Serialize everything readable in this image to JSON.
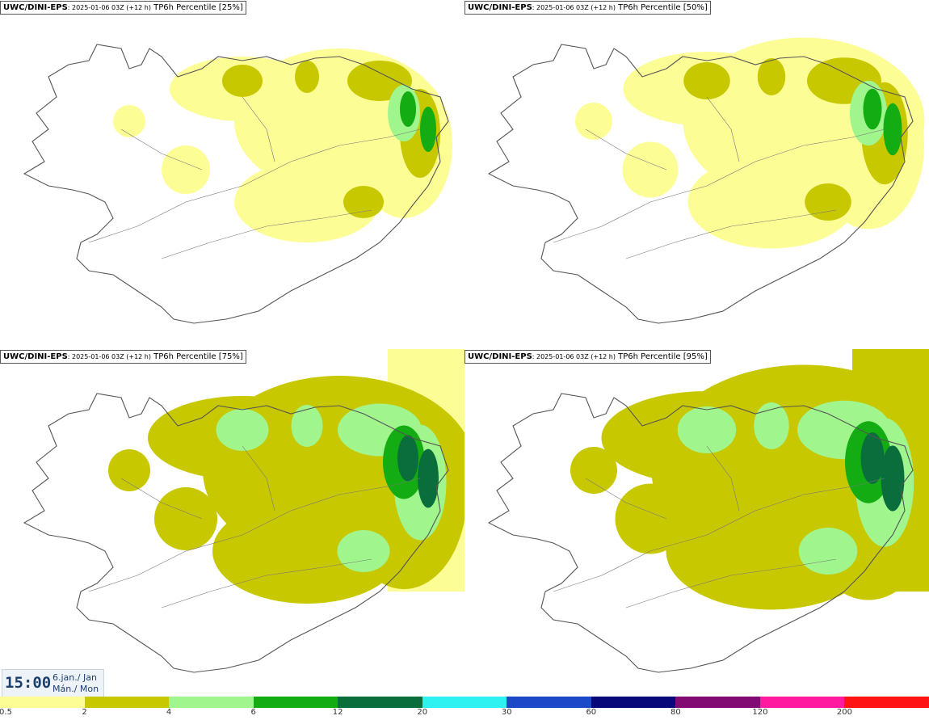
{
  "panels": [
    {
      "model": "UWC/DINI-EPS",
      "run": ": 2025-01-06 03Z (+12 h)",
      "field": " TP6h Percentile [25%]",
      "percentile": 25
    },
    {
      "model": "UWC/DINI-EPS",
      "run": ": 2025-01-06 03Z (+12 h)",
      "field": " TP6h Percentile [50%]",
      "percentile": 50
    },
    {
      "model": "UWC/DINI-EPS",
      "run": ": 2025-01-06 03Z (+12 h)",
      "field": " TP6h Percentile [75%]",
      "percentile": 75
    },
    {
      "model": "UWC/DINI-EPS",
      "run": ": 2025-01-06 03Z (+12 h)",
      "field": " TP6h Percentile [95%]",
      "percentile": 95
    }
  ],
  "valid_time": {
    "clock": "15:00",
    "date_line1": "6.jan./ Jan",
    "date_line2": "Mán./ Mon"
  },
  "colorbar": {
    "ticks": [
      "0.5",
      "2",
      "4",
      "6",
      "12",
      "20",
      "30",
      "60",
      "80",
      "120",
      "200"
    ],
    "colors": [
      "#fdfd96",
      "#c8c800",
      "#a0f58c",
      "#13ad13",
      "#0a6e3c",
      "#2ef2f2",
      "#1b49c8",
      "#08087a",
      "#820a73",
      "#ff1aa0",
      "#ff1414"
    ]
  }
}
